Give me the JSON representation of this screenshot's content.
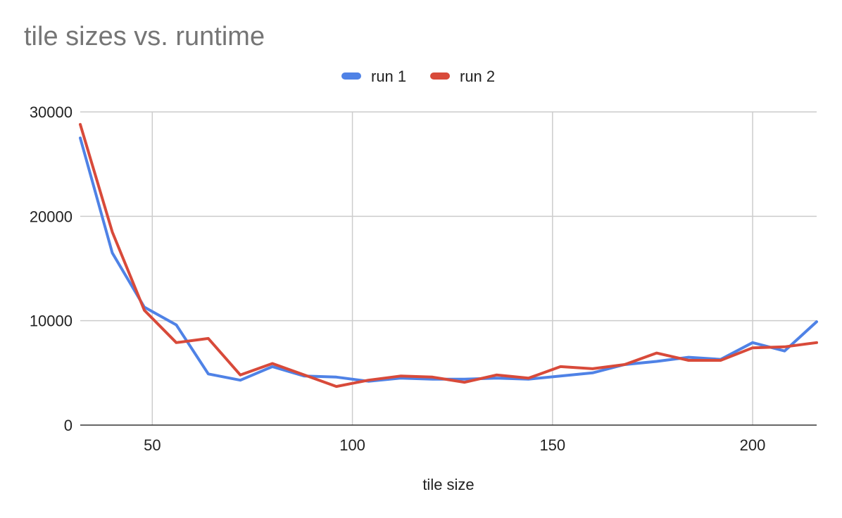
{
  "chart_data": {
    "type": "line",
    "title": "tile sizes vs. runtime",
    "xlabel": "tile size",
    "ylabel": "",
    "xlim": [
      32,
      216
    ],
    "ylim": [
      0,
      30000
    ],
    "xticks": [
      50,
      100,
      150,
      200
    ],
    "yticks": [
      0,
      10000,
      20000,
      30000
    ],
    "grid": true,
    "legend_position": "top-center",
    "x": [
      32,
      40,
      48,
      56,
      64,
      72,
      80,
      88,
      96,
      104,
      112,
      120,
      128,
      136,
      144,
      152,
      160,
      168,
      176,
      184,
      192,
      200,
      208,
      216
    ],
    "series": [
      {
        "name": "run 1",
        "color": "#4f82e6",
        "values": [
          27500,
          16500,
          11300,
          9600,
          4900,
          4300,
          5600,
          4700,
          4600,
          4200,
          4500,
          4400,
          4400,
          4500,
          4400,
          4700,
          5000,
          5800,
          6100,
          6500,
          6300,
          7900,
          7100,
          9900
        ]
      },
      {
        "name": "run 2",
        "color": "#d84a3a",
        "values": [
          28800,
          18500,
          11000,
          7900,
          8300,
          4800,
          5900,
          4800,
          3700,
          4300,
          4700,
          4600,
          4100,
          4800,
          4500,
          5600,
          5400,
          5800,
          6900,
          6200,
          6200,
          7400,
          7500,
          7900
        ]
      }
    ]
  }
}
